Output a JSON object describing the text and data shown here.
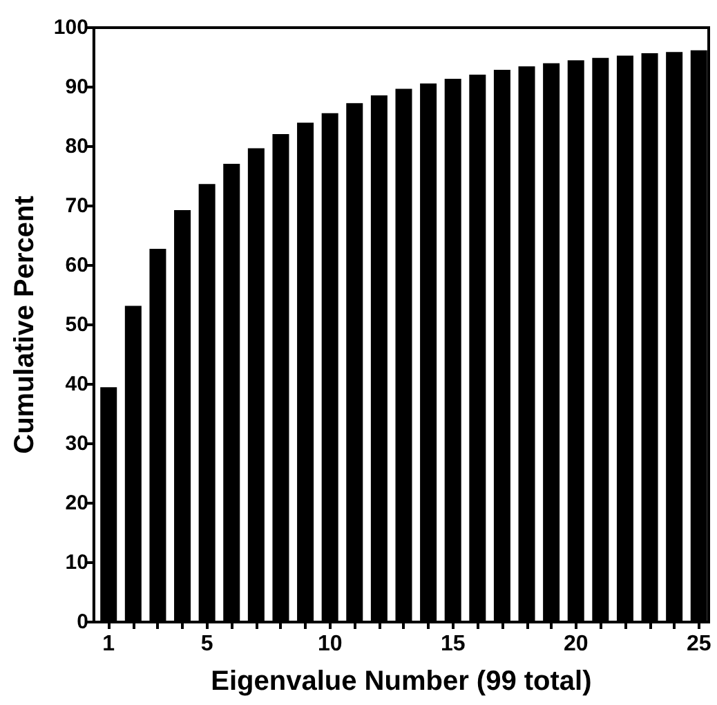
{
  "chart_data": {
    "type": "bar",
    "xlabel": "Eigenvalue Number (99 total)",
    "ylabel": "Cumulative Percent",
    "x": [
      1,
      2,
      3,
      4,
      5,
      6,
      7,
      8,
      9,
      10,
      11,
      12,
      13,
      14,
      15,
      16,
      17,
      18,
      19,
      20,
      21,
      22,
      23,
      24,
      25
    ],
    "values": [
      39.5,
      53.2,
      62.8,
      69.3,
      73.7,
      77.1,
      79.7,
      82.1,
      84.0,
      85.6,
      87.3,
      88.6,
      89.7,
      90.6,
      91.4,
      92.1,
      92.9,
      93.5,
      94.0,
      94.5,
      94.9,
      95.3,
      95.7,
      95.9,
      96.2
    ],
    "color": "#000000",
    "xlim": [
      0.4,
      25.4
    ],
    "xticks": [
      1,
      {
        "value": 2,
        "label": null
      },
      {
        "value": 3,
        "label": null
      },
      {
        "value": 4,
        "label": null
      },
      5,
      {
        "value": 6,
        "label": null
      },
      {
        "value": 7,
        "label": null
      },
      {
        "value": 8,
        "label": null
      },
      {
        "value": 9,
        "label": null
      },
      10,
      {
        "value": 11,
        "label": null
      },
      {
        "value": 12,
        "label": null
      },
      {
        "value": 13,
        "label": null
      },
      {
        "value": 14,
        "label": null
      },
      15,
      {
        "value": 16,
        "label": null
      },
      {
        "value": 17,
        "label": null
      },
      {
        "value": 18,
        "label": null
      },
      {
        "value": 19,
        "label": null
      },
      20,
      {
        "value": 21,
        "label": null
      },
      {
        "value": 22,
        "label": null
      },
      {
        "value": 23,
        "label": null
      },
      {
        "value": 24,
        "label": null
      },
      25
    ],
    "ylim": [
      0,
      100
    ],
    "yticks": [
      0,
      10,
      20,
      30,
      40,
      50,
      60,
      70,
      80,
      90,
      100
    ],
    "grid": false
  }
}
